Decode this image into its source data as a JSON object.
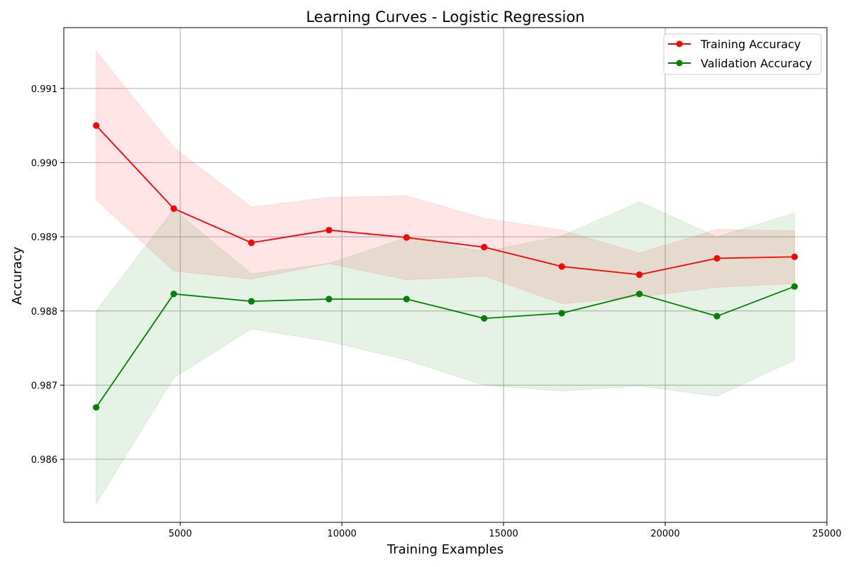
{
  "chart_data": {
    "type": "line",
    "title": "Learning Curves - Logistic Regression",
    "xlabel": "Training Examples",
    "ylabel": "Accuracy",
    "xlim": [
      1400,
      25000
    ],
    "ylim": [
      0.98515,
      0.99182
    ],
    "x_ticks": [
      5000,
      10000,
      15000,
      20000,
      25000
    ],
    "x_tick_labels": [
      "5000",
      "10000",
      "15000",
      "20000",
      "25000"
    ],
    "y_ticks": [
      0.986,
      0.987,
      0.988,
      0.989,
      0.99,
      0.991
    ],
    "y_tick_labels": [
      "0.986",
      "0.987",
      "0.988",
      "0.989",
      "0.990",
      "0.991"
    ],
    "grid": true,
    "legend_position": "top-right",
    "x": [
      2400,
      4800,
      7200,
      9600,
      12000,
      14400,
      16800,
      19200,
      21600,
      24000
    ],
    "series": [
      {
        "name": "Training Accuracy",
        "color": "#ff0000",
        "fill_color": "#ffcccc",
        "values": [
          0.9905,
          0.98938,
          0.98892,
          0.98909,
          0.98899,
          0.98886,
          0.9886,
          0.98849,
          0.98871,
          0.98873
        ],
        "upper": [
          0.9915,
          0.9902,
          0.9894,
          0.98953,
          0.98955,
          0.98925,
          0.98909,
          0.98878,
          0.9891,
          0.98908
        ],
        "lower": [
          0.9895,
          0.98854,
          0.98843,
          0.98864,
          0.98842,
          0.98847,
          0.9881,
          0.98819,
          0.98832,
          0.98837
        ]
      },
      {
        "name": "Validation Accuracy",
        "color": "#008000",
        "fill_color": "#c8e6c8",
        "values": [
          0.9867,
          0.98823,
          0.98813,
          0.98816,
          0.98816,
          0.9879,
          0.98797,
          0.98823,
          0.98793,
          0.98833
        ],
        "upper": [
          0.988,
          0.98937,
          0.9885,
          0.98864,
          0.98899,
          0.9888,
          0.98901,
          0.98947,
          0.989,
          0.98932
        ],
        "lower": [
          0.9854,
          0.9871,
          0.98776,
          0.98759,
          0.98734,
          0.987,
          0.98692,
          0.98699,
          0.98685,
          0.98734
        ]
      }
    ]
  }
}
